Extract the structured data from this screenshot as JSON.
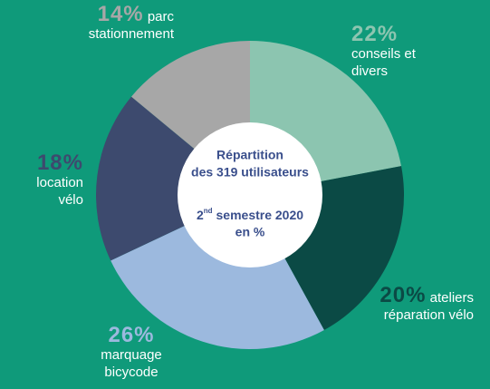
{
  "chart_data": {
    "type": "donut",
    "categories": [
      "conseils et divers",
      "ateliers réparation vélo",
      "marquage bicycode",
      "location vélo",
      "parc stationnement"
    ],
    "values": [
      22,
      20,
      26,
      18,
      14
    ],
    "value_labels": [
      "22%",
      "20%",
      "26%",
      "18%",
      "14%"
    ],
    "colors": [
      "#8cc5b0",
      "#0b4a45",
      "#9cb9de",
      "#3d4a6e",
      "#a7a7a7"
    ],
    "center": {
      "line1": "Répartition",
      "line2": "des 319 utilisateurs",
      "ordinal": "2",
      "ordinal_suffix": "nd",
      "line3": "semestre 2020",
      "line4": "en %"
    }
  }
}
